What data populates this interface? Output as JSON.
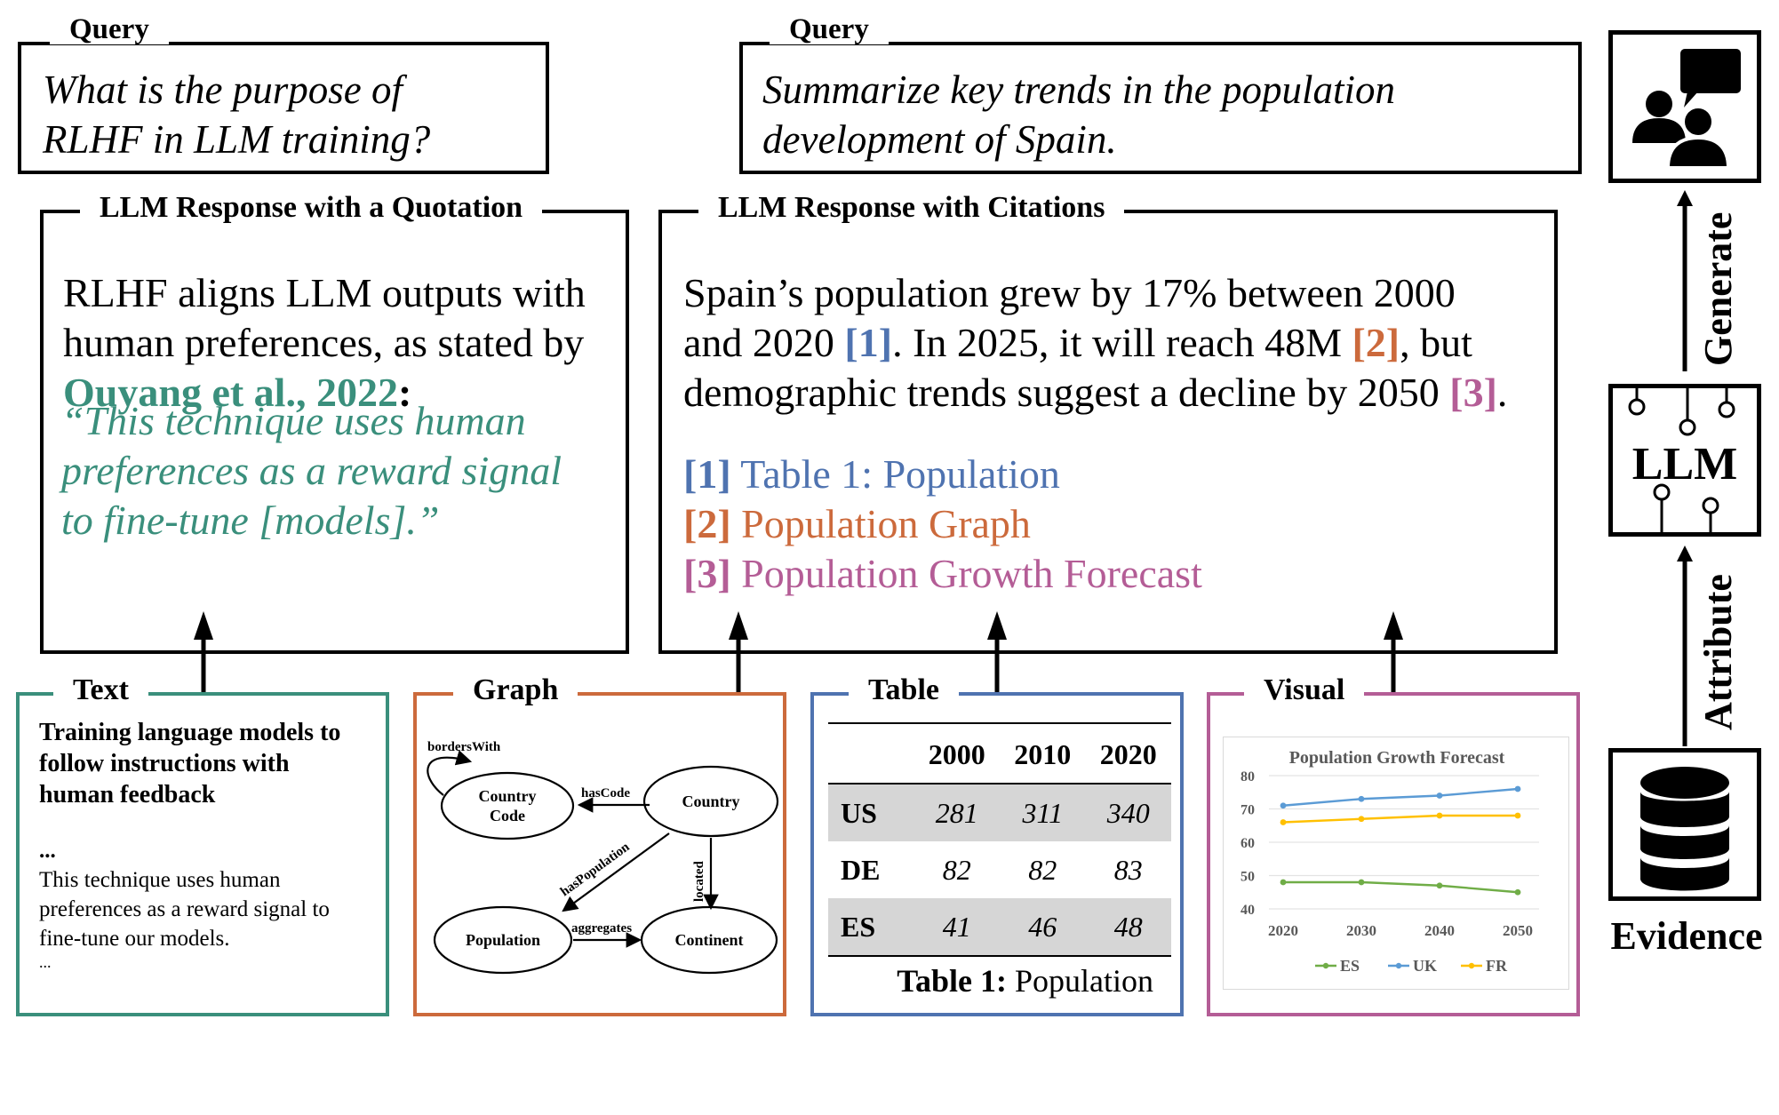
{
  "query_left": {
    "legend": "Query",
    "text_line1": "What is the purpose of",
    "text_line2": "RLHF in LLM training?"
  },
  "query_right": {
    "legend": "Query",
    "text_line1": "Summarize key trends in the population",
    "text_line2": "development of Spain."
  },
  "response_quote": {
    "legend": "LLM Response with a Quotation",
    "line1": "RLHF aligns LLM outputs with",
    "line2": "human preferences, as stated by",
    "citation": "Ouyang et al., 2022",
    "colon": ":",
    "quote1": "“This technique uses human",
    "quote2": "preferences as a reward signal",
    "quote3": "to fine-tune [models].”"
  },
  "response_citations": {
    "legend": "LLM Response with Citations",
    "l1": "Spain’s population grew by 17% between 2000",
    "l2a": "and 2020 ",
    "l2b": "[1]",
    "l2c": ". In 2025, it will reach 48M ",
    "l2d": "[2]",
    "l2e": ", but",
    "l3a": "demographic trends suggest a decline by 2050 ",
    "l3b": "[3]",
    "l3c": ".",
    "ref1_tag": "[1]",
    "ref1_text": " Table 1: Population",
    "ref2_tag": "[2]",
    "ref2_text": " Population Graph",
    "ref3_tag": "[3]",
    "ref3_text": " Population Growth Forecast"
  },
  "text_evidence": {
    "legend": "Text",
    "title1": "Training language models to",
    "title2": "follow instructions with",
    "title3": "human feedback",
    "ellipsis1": "...",
    "body1": "This technique uses human",
    "body2": "preferences as a reward signal to",
    "body3": "fine-tune our models.",
    "ellipsis2": "..."
  },
  "graph_evidence": {
    "legend": "Graph",
    "nodes": {
      "country_code": [
        "Country",
        "Code"
      ],
      "country": "Country",
      "population": "Population",
      "continent": "Continent"
    },
    "edges": {
      "borders_with": "bordersWith",
      "has_code": "hasCode",
      "has_population": "hasPopulation",
      "located": "located",
      "aggregates": "aggregates"
    }
  },
  "table_evidence": {
    "legend": "Table",
    "headers": [
      "2000",
      "2010",
      "2020"
    ],
    "rows": [
      {
        "label": "US",
        "values": [
          "281",
          "311",
          "340"
        ]
      },
      {
        "label": "DE",
        "values": [
          "82",
          "82",
          "83"
        ]
      },
      {
        "label": "ES",
        "values": [
          "41",
          "46",
          "48"
        ]
      }
    ],
    "caption_bold": "Table 1:",
    "caption_rest": " Population"
  },
  "visual_evidence": {
    "legend": "Visual",
    "colors": {
      "ES": "#70ad47",
      "UK": "#5b9bd5",
      "FR": "#ffc000"
    }
  },
  "chart_data": {
    "type": "line",
    "title": "Population Growth Forecast",
    "x": [
      "2020",
      "2030",
      "2040",
      "2050"
    ],
    "ylim": [
      40,
      80
    ],
    "yticks": [
      40,
      50,
      60,
      70,
      80
    ],
    "grid": true,
    "legend_position": "bottom",
    "series": [
      {
        "name": "ES",
        "values": [
          48,
          48,
          47,
          45
        ]
      },
      {
        "name": "UK",
        "values": [
          71,
          73,
          74,
          76
        ]
      },
      {
        "name": "FR",
        "values": [
          66,
          67,
          68,
          68
        ]
      }
    ]
  },
  "pipeline": {
    "llm_label": "LLM",
    "evidence_label": "Evidence",
    "generate_label": "Generate",
    "attribute_label": "Attribute",
    "icons": [
      "users-chat-icon",
      "database-icon"
    ]
  }
}
